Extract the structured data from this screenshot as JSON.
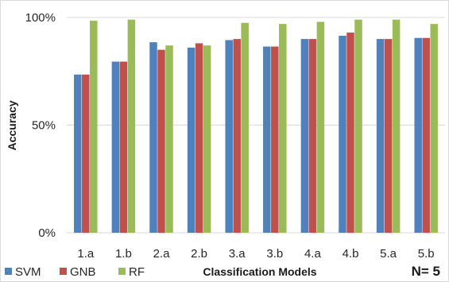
{
  "chart_data": {
    "type": "bar",
    "title": "",
    "xlabel": "Classification Models",
    "ylabel": "Accuracy",
    "ylim": [
      0,
      100
    ],
    "yticks": [
      0,
      50,
      100
    ],
    "ytick_labels": [
      "0%",
      "50%",
      "100%"
    ],
    "grid": "horizontal",
    "legend": "bottom-left",
    "annotation": "N= 5",
    "categories": [
      "1.a",
      "1.b",
      "2.a",
      "2.b",
      "3.a",
      "3.b",
      "4.a",
      "4.b",
      "5.a",
      "5.b"
    ],
    "series": [
      {
        "name": "SVM",
        "color": "#4F81BD",
        "values": [
          73.5,
          79.5,
          88.5,
          86.0,
          89.5,
          86.5,
          90.0,
          91.5,
          90.0,
          90.5
        ]
      },
      {
        "name": "GNB",
        "color": "#C0504D",
        "values": [
          73.5,
          79.5,
          85.0,
          88.0,
          90.0,
          86.5,
          90.0,
          93.0,
          90.0,
          90.5
        ]
      },
      {
        "name": "RF",
        "color": "#9BBB59",
        "values": [
          98.5,
          99.0,
          87.0,
          87.0,
          97.5,
          97.0,
          98.0,
          99.0,
          99.0,
          97.0
        ]
      }
    ]
  }
}
